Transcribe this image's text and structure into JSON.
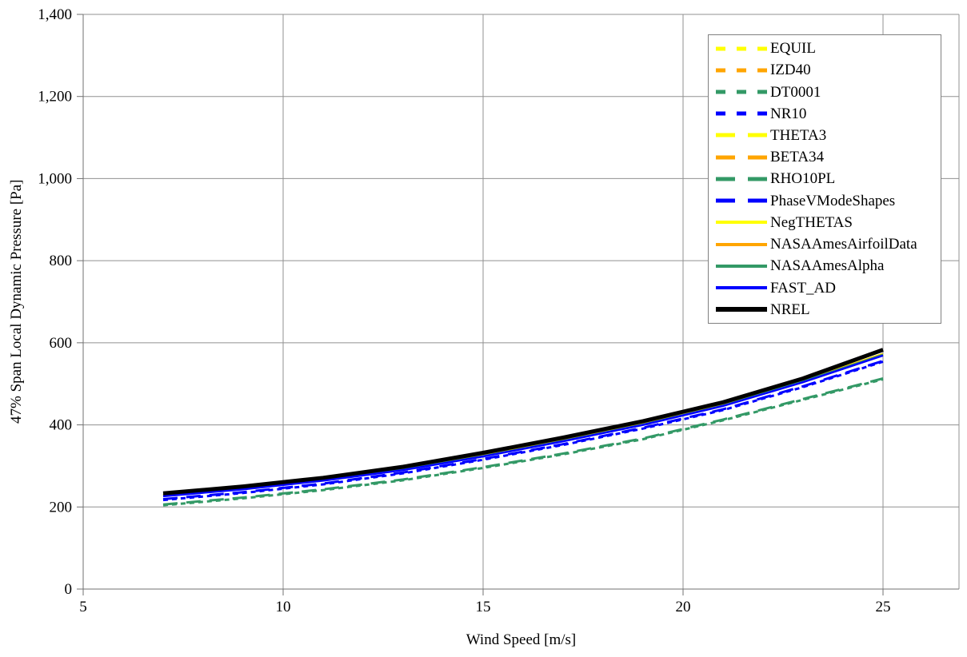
{
  "chart_data": {
    "type": "line",
    "title": "",
    "xlabel": "Wind Speed [m/s]",
    "ylabel": "47% Span Local Dynamic Pressure [Pa]",
    "xlim": [
      5,
      26.9
    ],
    "ylim": [
      0,
      1400
    ],
    "x_ticks": [
      5,
      10,
      15,
      20,
      25
    ],
    "x_tick_labels": [
      "5",
      "10",
      "15",
      "20",
      "25"
    ],
    "y_ticks": [
      0,
      200,
      400,
      600,
      800,
      1000,
      1200,
      1400
    ],
    "y_tick_labels": [
      "0",
      "200",
      "400",
      "600",
      "800",
      "1,000",
      "1,200",
      "1,400"
    ],
    "grid": true,
    "grid_color": "#909090",
    "axis_color": "#707070",
    "legend_position": "upper-right",
    "x": [
      7,
      9,
      11,
      13,
      15,
      17,
      19,
      21,
      23,
      25
    ],
    "series": [
      {
        "name": "EQUIL",
        "color": "#FFFF00",
        "style": "short-dash",
        "width": 3,
        "values": [
          228,
          245,
          266,
          292,
          325,
          362,
          402,
          448,
          507,
          572
        ]
      },
      {
        "name": "IZD40",
        "color": "#FFA500",
        "style": "short-dash",
        "width": 3,
        "values": [
          228,
          245,
          266,
          292,
          325,
          362,
          402,
          448,
          507,
          572
        ]
      },
      {
        "name": "DT0001",
        "color": "#339966",
        "style": "short-dash",
        "width": 3,
        "values": [
          204,
          221,
          241,
          265,
          295,
          328,
          365,
          411,
          461,
          511
        ]
      },
      {
        "name": "NR10",
        "color": "#0000FF",
        "style": "short-dash",
        "width": 3,
        "values": [
          217,
          234,
          255,
          282,
          315,
          351,
          391,
          436,
          492,
          554
        ]
      },
      {
        "name": "THETA3",
        "color": "#FFFF00",
        "style": "long-dash",
        "width": 3,
        "values": [
          228,
          245,
          266,
          292,
          325,
          362,
          402,
          448,
          507,
          572
        ]
      },
      {
        "name": "BETA34",
        "color": "#FFA500",
        "style": "long-dash",
        "width": 3,
        "values": [
          228,
          245,
          266,
          292,
          325,
          362,
          402,
          448,
          507,
          572
        ]
      },
      {
        "name": "RHO10PL",
        "color": "#339966",
        "style": "long-dash",
        "width": 3,
        "values": [
          206,
          223,
          243,
          267,
          297,
          330,
          367,
          413,
          463,
          513
        ]
      },
      {
        "name": "PhaseVModeShapes",
        "color": "#0000FF",
        "style": "long-dash",
        "width": 3,
        "values": [
          219,
          236,
          257,
          284,
          317,
          353,
          393,
          438,
          494,
          556
        ]
      },
      {
        "name": "NegTHETAS",
        "color": "#FFFF00",
        "style": "solid",
        "width": 2.5,
        "values": [
          229,
          246,
          267,
          293,
          326,
          363,
          403,
          449,
          508,
          573
        ]
      },
      {
        "name": "NASAAmesAirfoilData",
        "color": "#FFA500",
        "style": "solid",
        "width": 2.5,
        "values": [
          228,
          245,
          266,
          292,
          325,
          362,
          402,
          448,
          507,
          572
        ]
      },
      {
        "name": "NASAAmesAlpha",
        "color": "#339966",
        "style": "solid",
        "width": 2.5,
        "values": [
          227,
          244,
          265,
          291,
          324,
          361,
          401,
          447,
          506,
          571
        ]
      },
      {
        "name": "FAST_AD",
        "color": "#0000FF",
        "style": "solid",
        "width": 2.5,
        "values": [
          226,
          243,
          264,
          290,
          323,
          360,
          400,
          446,
          504,
          569
        ]
      },
      {
        "name": "NREL",
        "color": "#000000",
        "style": "solid",
        "width": 5,
        "values": [
          233,
          250,
          271,
          298,
          332,
          369,
          409,
          455,
          513,
          583
        ]
      }
    ]
  }
}
